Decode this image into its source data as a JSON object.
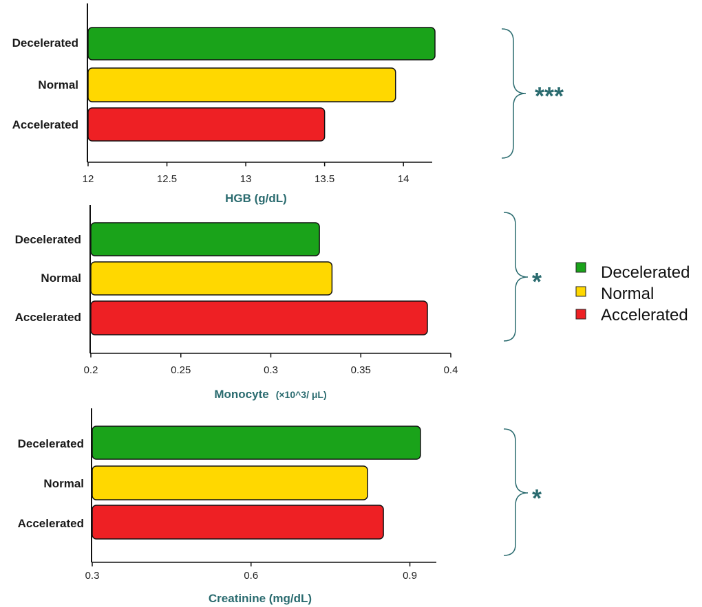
{
  "chart_data": [
    {
      "type": "bar",
      "orientation": "horizontal",
      "categories": [
        "Decelerated",
        "Normal",
        "Accelerated"
      ],
      "values": [
        14.2,
        13.95,
        13.5
      ],
      "xlabel": "HGB (g/dL)",
      "xlim": [
        12,
        14.2
      ],
      "ticks": [
        12,
        12.5,
        13,
        13.5,
        14
      ],
      "tick_labels": [
        "12",
        "12.5",
        "13",
        "13.5",
        "14"
      ],
      "significance": "***"
    },
    {
      "type": "bar",
      "orientation": "horizontal",
      "categories": [
        "Decelerated",
        "Normal",
        "Accelerated"
      ],
      "values": [
        0.327,
        0.334,
        0.387
      ],
      "xlabel": "Monocyte (×10^3/ μL)",
      "xlabel_main": "Monocyte",
      "xlabel_unit": "(×10^3/ μL)",
      "xlim": [
        0.2,
        0.4
      ],
      "ticks": [
        0.2,
        0.25,
        0.3,
        0.35,
        0.4
      ],
      "tick_labels": [
        "0.2",
        "0.25",
        "0.3",
        "0.35",
        "0.4"
      ],
      "significance": "*"
    },
    {
      "type": "bar",
      "orientation": "horizontal",
      "categories": [
        "Decelerated",
        "Normal",
        "Accelerated"
      ],
      "values": [
        0.92,
        0.82,
        0.85
      ],
      "xlabel": "Creatinine (mg/dL)",
      "xlim": [
        0.3,
        0.95
      ],
      "ticks": [
        0.3,
        0.6,
        0.9
      ],
      "tick_labels": [
        "0.3",
        "0.6",
        "0.9"
      ],
      "significance": "*"
    }
  ],
  "legend": {
    "items": [
      {
        "label": "Decelerated",
        "color": "#1aa31a"
      },
      {
        "label": "Normal",
        "color": "#ffd800"
      },
      {
        "label": "Accelerated",
        "color": "#ee2024"
      }
    ]
  },
  "colors": {
    "Decelerated": "#1aa31a",
    "Normal": "#ffd800",
    "Accelerated": "#ee2024",
    "accent": "#2a6b6f"
  }
}
